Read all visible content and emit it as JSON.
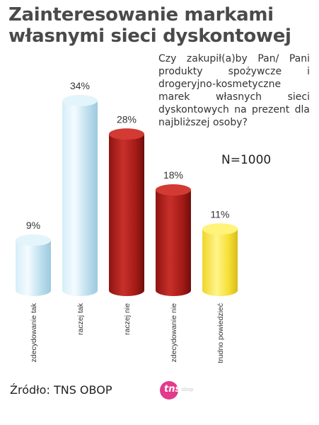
{
  "chart_data": {
    "type": "bar",
    "title": "Zainteresowanie markami własnymi sieci dyskontowej",
    "subtitle": "Czy zakupił(a)by Pan/ Pani produkty spożywcze i drogeryjno-kosmetyczne marek własnych sieci dyskontowych na prezent dla najbliższej osoby?",
    "sample": "N=1000",
    "categories": [
      "zdecydowanie tak",
      "raczej tak",
      "raczej nie",
      "zdecydowanie nie",
      "trudno powiedzieć"
    ],
    "values": [
      9,
      34,
      28,
      18,
      11
    ],
    "value_labels": [
      "9%",
      "34%",
      "28%",
      "18%",
      "11%"
    ],
    "bar_colors": [
      "#c8e6f3",
      "#c8e6f3",
      "#b41e1c",
      "#b41e1c",
      "#f6e33b"
    ],
    "ylim": [
      0,
      34
    ],
    "grid": false,
    "xlabel": "",
    "ylabel": ""
  },
  "source": "Źródło: TNS OBOP",
  "logo": {
    "mark_text": "tns",
    "sub_text": "obop"
  }
}
